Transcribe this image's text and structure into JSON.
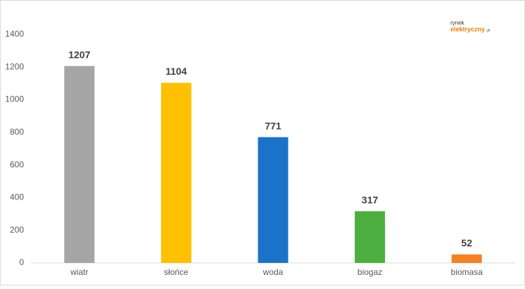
{
  "chart_data": {
    "type": "bar",
    "categories": [
      "wiatr",
      "słońce",
      "woda",
      "biogaz",
      "biomasa"
    ],
    "values": [
      1207,
      1104,
      771,
      317,
      52
    ],
    "colors": [
      "#a5a5a5",
      "#ffc000",
      "#1a73c9",
      "#4caf3f",
      "#f58220"
    ],
    "ylim": [
      0,
      1400
    ],
    "yticks": [
      0,
      200,
      400,
      600,
      800,
      1000,
      1200,
      1400
    ],
    "grid": false,
    "data_labels": true
  },
  "logo": {
    "top": "rynek",
    "main": "elektryczny",
    "suffix": ".pl"
  }
}
